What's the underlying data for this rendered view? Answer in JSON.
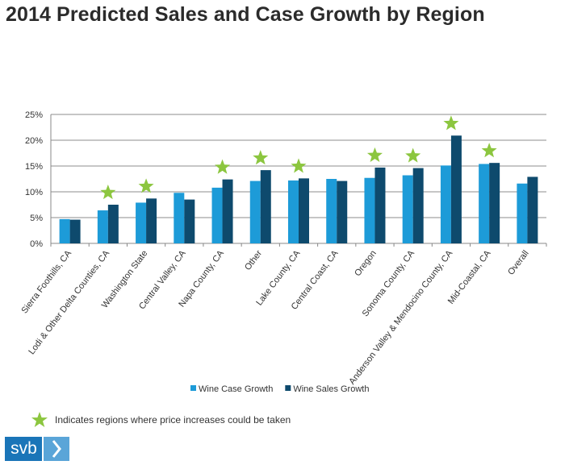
{
  "title": "2014 Predicted Sales and Case Growth by Region",
  "chart_data": {
    "type": "bar",
    "title": "2014 Predicted Sales and Case Growth by Region",
    "categories": [
      "Sierra Foothills, CA",
      "Lodi & Other Delta Counties, CA",
      "Washington State",
      "Central Valley, CA",
      "Napa County, CA",
      "Other",
      "Lake County, CA",
      "Central Coast, CA",
      "Oregon",
      "Sonoma County, CA",
      "Anderson Valley & Mendocino County, CA",
      "Mid-Coastal, CA",
      "Overall"
    ],
    "series": [
      {
        "name": "Wine Case Growth",
        "color": "#1d9bd8",
        "values": [
          4.7,
          6.4,
          7.9,
          9.8,
          10.8,
          12.1,
          12.2,
          12.5,
          12.7,
          13.2,
          15.1,
          15.4,
          11.6
        ]
      },
      {
        "name": "Wine Sales Growth",
        "color": "#0e4a6d",
        "values": [
          4.6,
          7.5,
          8.7,
          8.5,
          12.4,
          14.2,
          12.6,
          12.1,
          14.7,
          14.6,
          20.9,
          15.6,
          12.9
        ]
      }
    ],
    "star_categories": [
      "Lodi & Other Delta Counties, CA",
      "Washington State",
      "Napa County, CA",
      "Other",
      "Lake County, CA",
      "Oregon",
      "Sonoma County, CA",
      "Anderson Valley & Mendocino County, CA",
      "Mid-Coastal, CA"
    ],
    "star_color": "#8cc63f",
    "yticks": [
      "0%",
      "5%",
      "10%",
      "15%",
      "20%",
      "25%"
    ],
    "ylim": [
      0,
      25
    ],
    "xlabel": "",
    "ylabel": "",
    "grid": true,
    "legend_position": "bottom-center"
  },
  "footnote": "Indicates regions where price increases could be taken",
  "logo": {
    "text": "svb",
    "mark": "›",
    "color": "#1a75b8"
  }
}
